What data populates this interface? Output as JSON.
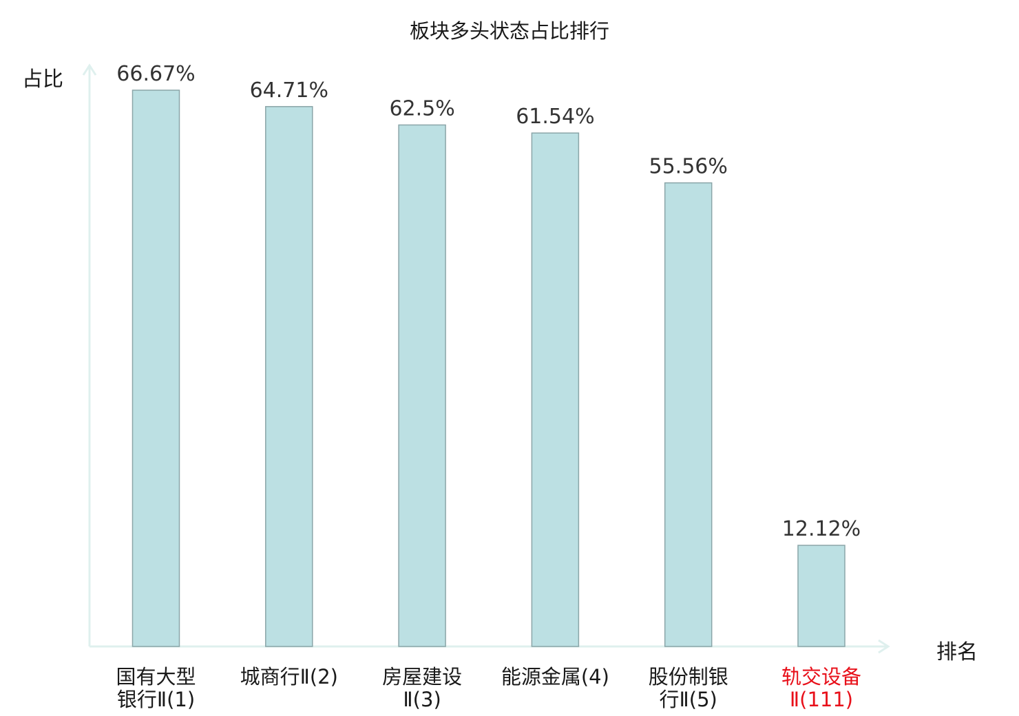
{
  "chart_data": {
    "type": "bar",
    "title": "板块多头状态占比排行",
    "xlabel": "排名",
    "ylabel": "占比",
    "categories": [
      {
        "line1": "国有大型",
        "line2": "银行Ⅱ(1)",
        "highlight": false
      },
      {
        "line1": "城商行Ⅱ(2)",
        "line2": "",
        "highlight": false
      },
      {
        "line1": "房屋建设",
        "line2": "Ⅱ(3)",
        "highlight": false
      },
      {
        "line1": "能源金属(4)",
        "line2": "",
        "highlight": false
      },
      {
        "line1": "股份制银",
        "line2": "行Ⅱ(5)",
        "highlight": false
      },
      {
        "line1": "轨交设备",
        "line2": "Ⅱ(111)",
        "highlight": true
      }
    ],
    "values": [
      66.67,
      64.71,
      62.5,
      61.54,
      55.56,
      12.12
    ],
    "data_labels": [
      "66.67%",
      "64.71%",
      "62.5%",
      "61.54%",
      "55.56%",
      "12.12%"
    ],
    "ylim": [
      0,
      66.67
    ],
    "grid": false,
    "legend": "none",
    "colors": {
      "bar_fill": "#bce0e3",
      "bar_stroke": "#8aa5a8",
      "axis": "#dff0ee",
      "label_text": "#1a1a1a",
      "value_text": "#333333",
      "highlight_text": "#e8101a"
    }
  }
}
